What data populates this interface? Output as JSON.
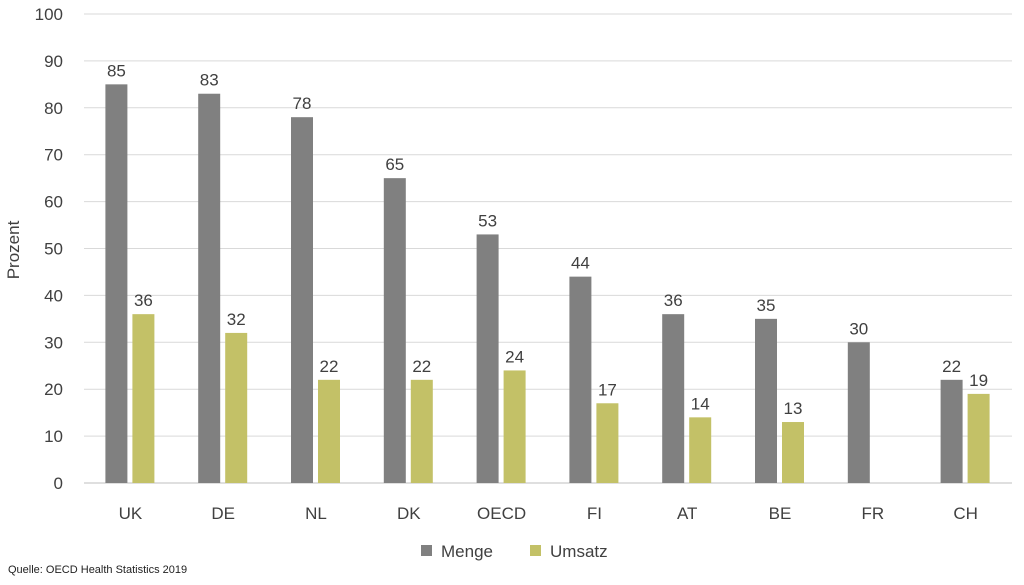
{
  "chart_data": {
    "type": "bar",
    "ylabel": "Prozent",
    "ylim": [
      0,
      100
    ],
    "yticks": [
      0,
      10,
      20,
      30,
      40,
      50,
      60,
      70,
      80,
      90,
      100
    ],
    "grid": true,
    "legend_position": "bottom",
    "categories": [
      "UK",
      "DE",
      "NL",
      "DK",
      "OECD",
      "FI",
      "AT",
      "BE",
      "FR",
      "CH"
    ],
    "series": [
      {
        "name": "Menge",
        "color": "#808080",
        "values": [
          85,
          83,
          78,
          65,
          53,
          44,
          36,
          35,
          30,
          22
        ],
        "labels": [
          "85",
          "83",
          "78",
          "65",
          "53",
          "44",
          "36",
          "35",
          "30",
          "22"
        ]
      },
      {
        "name": "Umsatz",
        "color": "#c3c167",
        "values": [
          36,
          32,
          22,
          22,
          24,
          17,
          14,
          13,
          null,
          19
        ],
        "labels": [
          "36",
          "32",
          "22",
          "22",
          "24",
          "17",
          "14",
          "13",
          "",
          "19"
        ]
      }
    ]
  },
  "source": "Quelle: OECD Health Statistics 2019"
}
